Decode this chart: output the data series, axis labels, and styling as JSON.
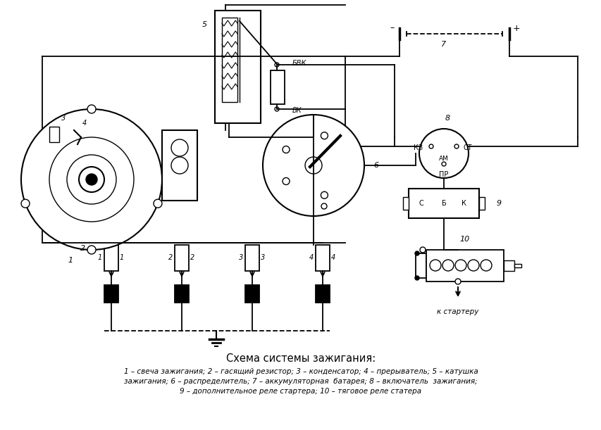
{
  "title": "Схема системы зажигания:",
  "caption_line1": "1 – свеча зажигания; 2 – гасящий резистор; 3 – конденсатор; 4 – прерыватель; 5 – катушка",
  "caption_line2": "зажигания; 6 – распределитель; 7 – аккумуляторная  батарея; 8 – включатель  зажигания;",
  "caption_line3": "9 – дополнительное реле стартера; 10 – тяговое реле статера",
  "bg_color": "#ffffff",
  "line_color": "#000000",
  "label_BVK": "БВК",
  "label_VK": "ВК",
  "label_KZ": "КЗ",
  "label_AM": "АМ",
  "label_ST": "СТ",
  "label_PR": "ПР",
  "label_C": "С",
  "label_B": "Б",
  "label_K": "К",
  "label_k_starter": "к стартеру",
  "num_5": "5",
  "num_6": "6",
  "num_7": "7",
  "num_8": "8",
  "num_9": "9",
  "num_10": "10",
  "num_3": "3",
  "num_4": "4",
  "num_2": "2",
  "minus": "–",
  "plus": "+"
}
